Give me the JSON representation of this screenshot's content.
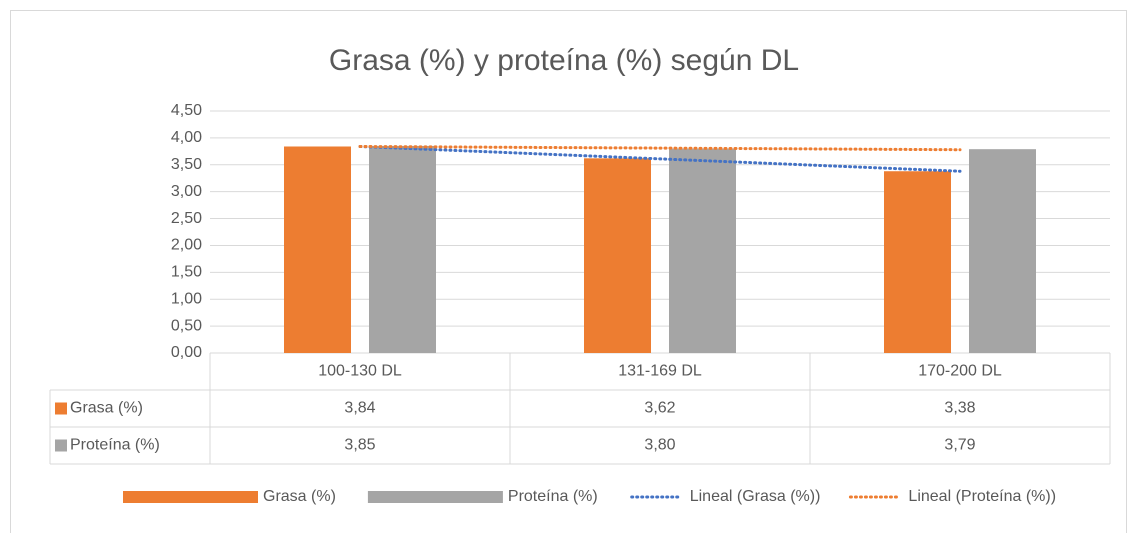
{
  "chart_data": {
    "type": "bar",
    "title": "Grasa (%) y proteína (%) según DL",
    "categories": [
      "100-130 DL",
      "131-169 DL",
      "170-200 DL"
    ],
    "series": [
      {
        "name": "Grasa (%)",
        "color": "#ed7d31",
        "values": [
          3.84,
          3.62,
          3.38
        ],
        "value_labels": [
          "3,84",
          "3,62",
          "3,38"
        ]
      },
      {
        "name": "Proteína (%)",
        "color": "#a5a5a5",
        "values": [
          3.85,
          3.8,
          3.79
        ],
        "value_labels": [
          "3,85",
          "3,80",
          "3,79"
        ]
      }
    ],
    "trendlines": [
      {
        "name": "Lineal (Grasa (%))",
        "color": "#4472c4",
        "values": [
          3.84,
          3.61,
          3.38
        ]
      },
      {
        "name": "Lineal (Proteína (%))",
        "color": "#ed7d31",
        "values": [
          3.84,
          3.81,
          3.78
        ]
      }
    ],
    "ylim": [
      0,
      4.5
    ],
    "yticks": [
      {
        "value": 0,
        "label": "0,00"
      },
      {
        "value": 0.5,
        "label": "0,50"
      },
      {
        "value": 1,
        "label": "1,00"
      },
      {
        "value": 1.5,
        "label": "1,50"
      },
      {
        "value": 2,
        "label": "2,00"
      },
      {
        "value": 2.5,
        "label": "2,50"
      },
      {
        "value": 3,
        "label": "3,00"
      },
      {
        "value": 3.5,
        "label": "3,50"
      },
      {
        "value": 4,
        "label": "4,00"
      },
      {
        "value": 4.5,
        "label": "4,50"
      }
    ],
    "grid": true
  }
}
